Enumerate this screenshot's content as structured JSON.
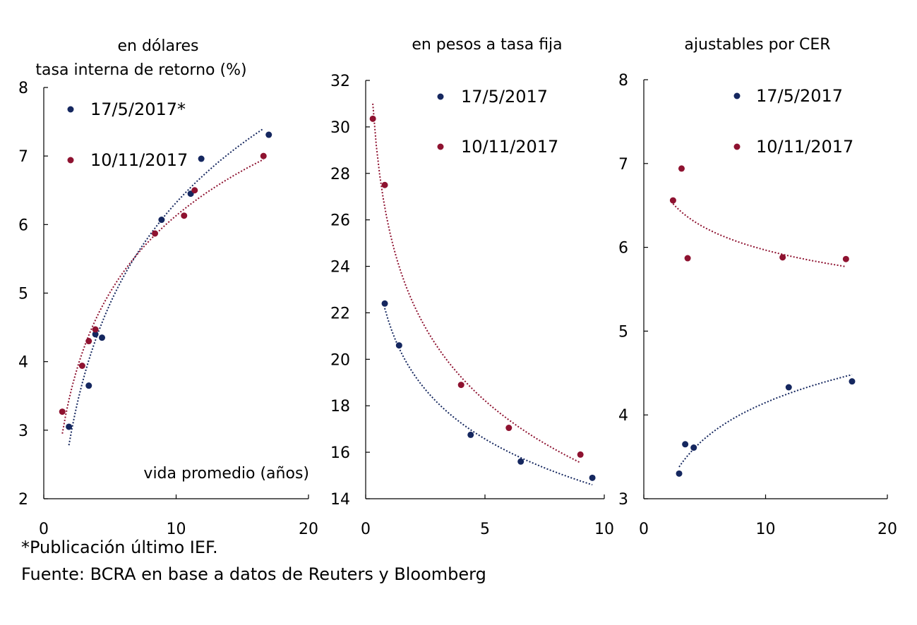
{
  "colors": {
    "series_1": "#15275f",
    "series_2": "#8e1230"
  },
  "chart_data": [
    {
      "type": "scatter",
      "title": "en dólares",
      "ylabel": "tasa interna de retorno (%)",
      "xlabel": "vida promedio (años)",
      "xlim": [
        0,
        20
      ],
      "ylim": [
        2,
        8
      ],
      "x_ticks": [
        0,
        10,
        20
      ],
      "y_ticks": [
        2,
        3,
        4,
        5,
        6,
        7,
        8
      ],
      "grid": false,
      "legend_position": "top-left",
      "series": [
        {
          "name": "17/5/2017*",
          "color": "#15275f",
          "points": [
            [
              1.9,
              3.05
            ],
            [
              3.4,
              3.65
            ],
            [
              3.9,
              4.4
            ],
            [
              4.4,
              4.35
            ],
            [
              8.9,
              6.07
            ],
            [
              11.1,
              6.45
            ],
            [
              11.9,
              6.96
            ],
            [
              17.0,
              7.31
            ]
          ],
          "trendline": {
            "type": "logarithmic",
            "x_range": [
              1.9,
              16.6
            ],
            "y_range": [
              2.78,
              7.4
            ]
          }
        },
        {
          "name": "10/11/2017",
          "color": "#8e1230",
          "points": [
            [
              1.4,
              3.27
            ],
            [
              2.9,
              3.94
            ],
            [
              3.4,
              4.3
            ],
            [
              3.9,
              4.47
            ],
            [
              8.4,
              5.87
            ],
            [
              10.6,
              6.13
            ],
            [
              11.4,
              6.5
            ],
            [
              16.6,
              7.0
            ]
          ],
          "trendline": {
            "type": "logarithmic",
            "x_range": [
              1.4,
              16.6
            ],
            "y_range": [
              2.95,
              6.95
            ]
          }
        }
      ]
    },
    {
      "type": "scatter",
      "title": "en pesos a tasa fija",
      "xlim": [
        0,
        10
      ],
      "ylim": [
        14,
        32
      ],
      "x_ticks": [
        0,
        5,
        10
      ],
      "y_ticks": [
        14,
        16,
        18,
        20,
        22,
        24,
        26,
        28,
        30,
        32
      ],
      "grid": false,
      "legend_position": "top-right",
      "series": [
        {
          "name": "17/5/2017",
          "color": "#15275f",
          "points": [
            [
              0.8,
              22.4
            ],
            [
              1.4,
              20.6
            ],
            [
              4.4,
              16.75
            ],
            [
              6.5,
              15.6
            ],
            [
              9.5,
              14.9
            ]
          ],
          "trendline": {
            "type": "logarithmic",
            "x_range": [
              0.8,
              9.5
            ],
            "y_range": [
              22.2,
              14.6
            ]
          }
        },
        {
          "name": "10/11/2017",
          "color": "#8e1230",
          "points": [
            [
              0.3,
              30.35
            ],
            [
              0.8,
              27.5
            ],
            [
              4.0,
              18.9
            ],
            [
              6.0,
              17.05
            ],
            [
              9.0,
              15.9
            ]
          ],
          "trendline": {
            "type": "logarithmic",
            "x_range": [
              0.3,
              9.0
            ],
            "y_range": [
              31.0,
              15.55
            ]
          }
        }
      ]
    },
    {
      "type": "scatter",
      "title": "ajustables por CER",
      "xlim": [
        0,
        20
      ],
      "ylim": [
        3,
        8
      ],
      "x_ticks": [
        0,
        10,
        20
      ],
      "y_ticks": [
        3,
        4,
        5,
        6,
        7,
        8
      ],
      "grid": false,
      "legend_position": "top-right",
      "series": [
        {
          "name": "17/5/2017",
          "color": "#15275f",
          "points": [
            [
              2.9,
              3.3
            ],
            [
              3.4,
              3.65
            ],
            [
              4.1,
              3.61
            ],
            [
              11.9,
              4.33
            ],
            [
              17.1,
              4.4
            ]
          ],
          "trendline": {
            "type": "logarithmic",
            "x_range": [
              2.9,
              17.1
            ],
            "y_range": [
              3.38,
              4.48
            ]
          }
        },
        {
          "name": "10/11/2017",
          "color": "#8e1230",
          "points": [
            [
              2.4,
              6.56
            ],
            [
              3.1,
              6.94
            ],
            [
              3.6,
              5.87
            ],
            [
              11.4,
              5.88
            ],
            [
              16.6,
              5.86
            ]
          ],
          "trendline": {
            "type": "logarithmic",
            "x_range": [
              2.4,
              16.6
            ],
            "y_range": [
              6.52,
              5.77
            ]
          }
        }
      ]
    }
  ],
  "footnotes": {
    "note": "*Publicación último IEF.",
    "source": "Fuente: BCRA en base a datos de Reuters y Bloomberg"
  }
}
